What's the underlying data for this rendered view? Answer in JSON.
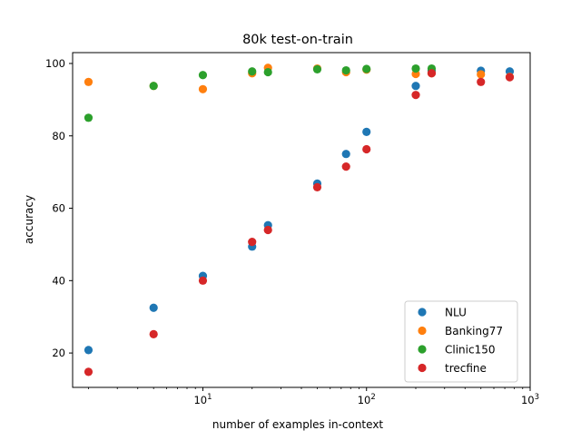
{
  "chart_data": {
    "type": "scatter",
    "title": "80k test-on-train",
    "xlabel": "number of examples in-context",
    "ylabel": "accuracy",
    "xscale": "log",
    "xlim": [
      1.6,
      1000
    ],
    "ylim": [
      10.5,
      103
    ],
    "x_ticks": [
      {
        "value": 10,
        "base": "10",
        "exp": "1"
      },
      {
        "value": 100,
        "base": "10",
        "exp": "2"
      },
      {
        "value": 1000,
        "base": "10",
        "exp": "3"
      }
    ],
    "y_ticks": [
      20,
      40,
      60,
      80,
      100
    ],
    "grid": false,
    "legend_position": "lower right",
    "series": [
      {
        "name": "NLU",
        "color": "#1f77b4",
        "points": [
          [
            2,
            20.8
          ],
          [
            5,
            32.5
          ],
          [
            10,
            41.3
          ],
          [
            20,
            49.4
          ],
          [
            25,
            55.3
          ],
          [
            50,
            66.8
          ],
          [
            75,
            75.0
          ],
          [
            100,
            81.1
          ],
          [
            200,
            93.8
          ],
          [
            250,
            98.0
          ],
          [
            500,
            98.0
          ],
          [
            750,
            97.8
          ]
        ]
      },
      {
        "name": "Banking77",
        "color": "#ff7f0e",
        "points": [
          [
            2,
            94.9
          ],
          [
            5,
            93.8
          ],
          [
            10,
            92.9
          ],
          [
            20,
            97.3
          ],
          [
            25,
            98.8
          ],
          [
            50,
            98.6
          ],
          [
            75,
            97.6
          ],
          [
            100,
            98.3
          ],
          [
            200,
            97.1
          ],
          [
            250,
            97.3
          ],
          [
            500,
            97.0
          ],
          [
            750,
            96.3
          ]
        ]
      },
      {
        "name": "Clinic150",
        "color": "#2ca02c",
        "points": [
          [
            2,
            85.0
          ],
          [
            5,
            93.8
          ],
          [
            10,
            96.8
          ],
          [
            20,
            97.8
          ],
          [
            25,
            97.6
          ],
          [
            50,
            98.4
          ],
          [
            75,
            98.1
          ],
          [
            100,
            98.5
          ],
          [
            200,
            98.6
          ],
          [
            250,
            98.6
          ]
        ]
      },
      {
        "name": "trecfine",
        "color": "#d62728",
        "points": [
          [
            2,
            14.8
          ],
          [
            5,
            25.2
          ],
          [
            10,
            40.0
          ],
          [
            20,
            50.7
          ],
          [
            25,
            54.0
          ],
          [
            50,
            65.8
          ],
          [
            75,
            71.5
          ],
          [
            100,
            76.3
          ],
          [
            200,
            91.3
          ],
          [
            250,
            97.3
          ],
          [
            500,
            94.9
          ],
          [
            750,
            96.2
          ]
        ]
      }
    ]
  }
}
